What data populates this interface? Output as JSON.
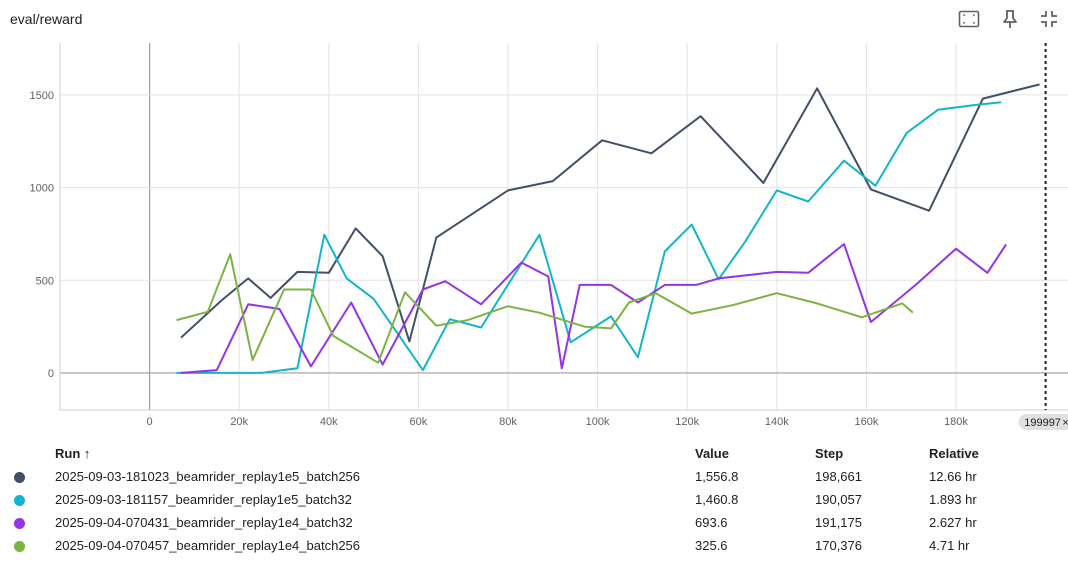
{
  "card": {
    "title": "eval/reward",
    "toolbar": [
      {
        "name": "fit-domain-icon"
      },
      {
        "name": "pin-icon"
      },
      {
        "name": "collapse-icon"
      }
    ]
  },
  "cursor": {
    "step_label": "199997",
    "close": "×"
  },
  "table": {
    "headers": {
      "run": "Run ↑",
      "value": "Value",
      "step": "Step",
      "relative": "Relative"
    },
    "rows": [
      {
        "run": "2025-09-03-181023_beamrider_replay1e5_batch256",
        "value": "1,556.8",
        "step": "198,661",
        "relative": "12.66 hr",
        "color": "#425066"
      },
      {
        "run": "2025-09-03-181157_beamrider_replay1e5_batch32",
        "value": "1,460.8",
        "step": "190,057",
        "relative": "1.893 hr",
        "color": "#12b5cb"
      },
      {
        "run": "2025-09-04-070431_beamrider_replay1e4_batch32",
        "value": "693.6",
        "step": "191,175",
        "relative": "2.627 hr",
        "color": "#9334e6"
      },
      {
        "run": "2025-09-04-070457_beamrider_replay1e4_batch256",
        "value": "325.6",
        "step": "170,376",
        "relative": "4.71 hr",
        "color": "#7cb342"
      }
    ]
  },
  "chart_data": {
    "type": "line",
    "title": "eval/reward",
    "xlim": [
      -20000,
      205000
    ],
    "ylim": [
      -200,
      1780
    ],
    "x_ticks": [
      0,
      20000,
      40000,
      60000,
      80000,
      100000,
      120000,
      140000,
      160000,
      180000
    ],
    "x_tick_labels": [
      "0",
      "20k",
      "40k",
      "60k",
      "80k",
      "100k",
      "120k",
      "140k",
      "160k",
      "180k"
    ],
    "y_ticks": [
      0,
      500,
      1000,
      1500
    ],
    "y_tick_labels": [
      "0",
      "500",
      "1000",
      "1500"
    ],
    "grid": true,
    "cursor_step": 199997,
    "series": [
      {
        "name": "2025-09-03-181023_beamrider_replay1e5_batch256",
        "color": "#425066",
        "points": [
          [
            7000,
            190
          ],
          [
            16000,
            390
          ],
          [
            22000,
            510
          ],
          [
            27000,
            405
          ],
          [
            33000,
            545
          ],
          [
            40000,
            540
          ],
          [
            46000,
            780
          ],
          [
            52000,
            630
          ],
          [
            58000,
            170
          ],
          [
            64000,
            730
          ],
          [
            80000,
            985
          ],
          [
            90000,
            1035
          ],
          [
            101000,
            1255
          ],
          [
            112000,
            1185
          ],
          [
            123000,
            1385
          ],
          [
            137000,
            1025
          ],
          [
            149000,
            1535
          ],
          [
            161000,
            990
          ],
          [
            174000,
            875
          ],
          [
            186000,
            1480
          ],
          [
            198661,
            1556.8
          ]
        ]
      },
      {
        "name": "2025-09-03-181157_beamrider_replay1e5_batch32",
        "color": "#12b5cb",
        "points": [
          [
            6000,
            0
          ],
          [
            15000,
            0
          ],
          [
            25000,
            0
          ],
          [
            33000,
            25
          ],
          [
            39000,
            745
          ],
          [
            44000,
            510
          ],
          [
            50000,
            400
          ],
          [
            61000,
            15
          ],
          [
            67000,
            290
          ],
          [
            74000,
            245
          ],
          [
            87000,
            745
          ],
          [
            94000,
            165
          ],
          [
            103000,
            305
          ],
          [
            109000,
            85
          ],
          [
            115000,
            655
          ],
          [
            121000,
            800
          ],
          [
            127000,
            505
          ],
          [
            133000,
            710
          ],
          [
            140000,
            985
          ],
          [
            147000,
            925
          ],
          [
            155000,
            1145
          ],
          [
            162000,
            1010
          ],
          [
            169000,
            1295
          ],
          [
            176000,
            1420
          ],
          [
            184000,
            1445
          ],
          [
            190057,
            1460.8
          ]
        ]
      },
      {
        "name": "2025-09-04-070431_beamrider_replay1e4_batch32",
        "color": "#9334e6",
        "points": [
          [
            7000,
            0
          ],
          [
            15000,
            15
          ],
          [
            22000,
            370
          ],
          [
            29000,
            345
          ],
          [
            36000,
            35
          ],
          [
            45000,
            380
          ],
          [
            52000,
            45
          ],
          [
            61000,
            450
          ],
          [
            66000,
            495
          ],
          [
            74000,
            370
          ],
          [
            83000,
            595
          ],
          [
            89000,
            520
          ],
          [
            92000,
            25
          ],
          [
            96000,
            475
          ],
          [
            103000,
            475
          ],
          [
            109000,
            380
          ],
          [
            115000,
            475
          ],
          [
            122000,
            475
          ],
          [
            127000,
            510
          ],
          [
            140000,
            545
          ],
          [
            147000,
            540
          ],
          [
            155000,
            695
          ],
          [
            161000,
            275
          ],
          [
            171000,
            475
          ],
          [
            180000,
            670
          ],
          [
            187000,
            540
          ],
          [
            191175,
            693.6
          ]
        ]
      },
      {
        "name": "2025-09-04-070457_beamrider_replay1e4_batch256",
        "color": "#7cb342",
        "points": [
          [
            6000,
            285
          ],
          [
            13000,
            330
          ],
          [
            18000,
            640
          ],
          [
            23000,
            70
          ],
          [
            30000,
            450
          ],
          [
            36000,
            450
          ],
          [
            41000,
            200
          ],
          [
            51000,
            55
          ],
          [
            57000,
            435
          ],
          [
            64000,
            255
          ],
          [
            71000,
            285
          ],
          [
            80000,
            360
          ],
          [
            87000,
            325
          ],
          [
            97000,
            250
          ],
          [
            103000,
            240
          ],
          [
            107000,
            380
          ],
          [
            113000,
            430
          ],
          [
            121000,
            320
          ],
          [
            130000,
            365
          ],
          [
            140000,
            430
          ],
          [
            149000,
            375
          ],
          [
            159000,
            300
          ],
          [
            168000,
            375
          ],
          [
            170376,
            325.6
          ]
        ]
      }
    ]
  }
}
